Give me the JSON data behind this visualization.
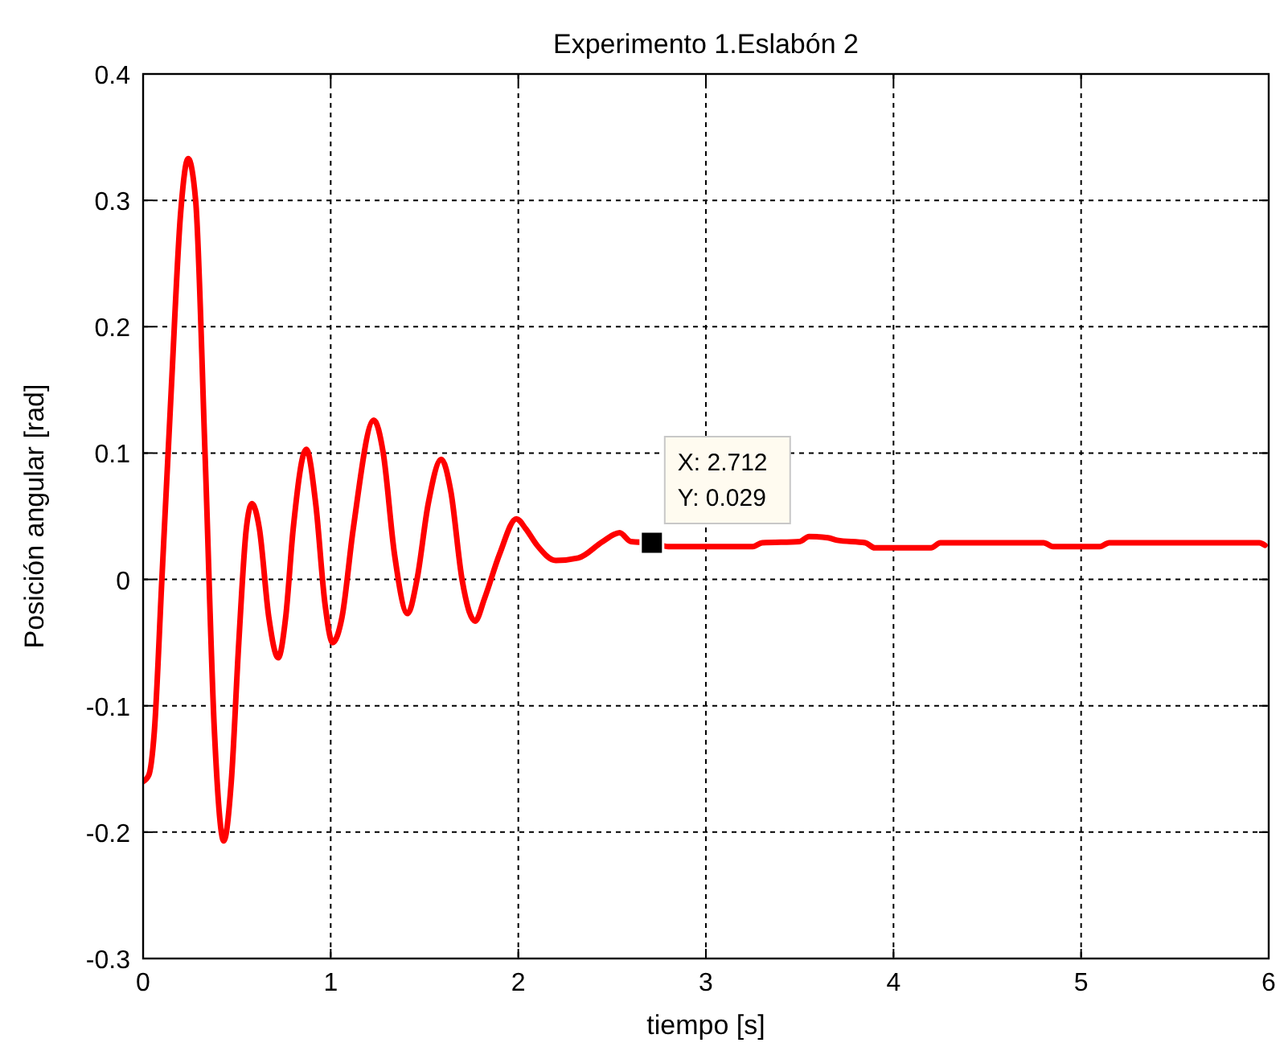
{
  "chart_data": {
    "type": "line",
    "title": "Experimento 1.Eslabón 2",
    "xlabel": "tiempo [s]",
    "ylabel": "Posición angular [rad]",
    "xlim": [
      0,
      6
    ],
    "xticks": [
      0,
      1,
      2,
      3,
      4,
      5,
      6
    ],
    "ylim": [
      -0.3,
      0.4
    ],
    "yticks": [
      -0.3,
      -0.2,
      -0.1,
      0,
      0.1,
      0.2,
      0.3,
      0.4
    ],
    "grid": true,
    "marker": "none",
    "line_style": "solid",
    "annotations": [
      {
        "text": "X: 2.712\nY: 0.029",
        "x": 2.712,
        "y": 0.029
      }
    ],
    "series": [
      {
        "color": "#ff0000",
        "x": [
          0,
          0.03,
          0.06,
          0.1,
          0.15,
          0.2,
          0.24,
          0.28,
          0.33,
          0.38,
          0.43,
          0.47,
          0.51,
          0.55,
          0.58,
          0.62,
          0.67,
          0.72,
          0.76,
          0.8,
          0.87,
          0.92,
          0.97,
          1.01,
          1.06,
          1.12,
          1.23,
          1.28,
          1.34,
          1.41,
          1.46,
          1.52,
          1.59,
          1.64,
          1.7,
          1.77,
          1.82,
          1.9,
          1.99,
          2.04,
          2.1,
          2.2,
          2.32,
          2.45,
          2.54,
          2.6,
          2.712,
          2.8,
          3.25,
          3.3,
          3.5,
          3.55,
          3.65,
          3.7,
          3.85,
          3.9,
          4.2,
          4.25,
          4.8,
          4.85,
          5.1,
          5.15,
          5.95,
          5.98
        ],
        "values": [
          -0.16,
          -0.155,
          -0.12,
          0.0,
          0.15,
          0.29,
          0.333,
          0.3,
          0.1,
          -0.12,
          -0.207,
          -0.16,
          -0.05,
          0.04,
          0.06,
          0.04,
          -0.03,
          -0.062,
          -0.03,
          0.04,
          0.103,
          0.06,
          -0.02,
          -0.05,
          -0.03,
          0.04,
          0.126,
          0.1,
          0.02,
          -0.027,
          0.0,
          0.06,
          0.095,
          0.07,
          0.0,
          -0.033,
          -0.015,
          0.02,
          0.048,
          0.04,
          0.027,
          0.015,
          0.017,
          0.03,
          0.037,
          0.03,
          0.029,
          0.026,
          0.026,
          0.029,
          0.03,
          0.034,
          0.033,
          0.031,
          0.029,
          0.025,
          0.025,
          0.029,
          0.029,
          0.026,
          0.026,
          0.029,
          0.029,
          0.027
        ]
      }
    ]
  }
}
